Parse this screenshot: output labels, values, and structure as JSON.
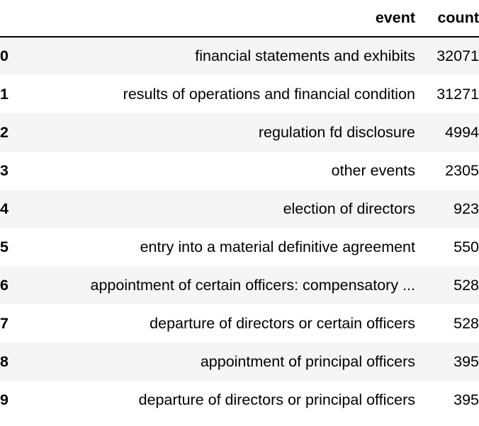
{
  "table": {
    "columns": [
      "event",
      "count"
    ],
    "rows": [
      {
        "index": "0",
        "event": "financial statements and exhibits",
        "count": "32071"
      },
      {
        "index": "1",
        "event": "results of operations and financial condition",
        "count": "31271"
      },
      {
        "index": "2",
        "event": "regulation fd disclosure",
        "count": "4994"
      },
      {
        "index": "3",
        "event": "other events",
        "count": "2305"
      },
      {
        "index": "4",
        "event": "election of directors",
        "count": "923"
      },
      {
        "index": "5",
        "event": "entry into a material definitive agreement",
        "count": "550"
      },
      {
        "index": "6",
        "event": "appointment of certain officers: compensatory ...",
        "count": "528"
      },
      {
        "index": "7",
        "event": "departure of directors or certain officers",
        "count": "528"
      },
      {
        "index": "8",
        "event": "appointment of principal officers",
        "count": "395"
      },
      {
        "index": "9",
        "event": "departure of directors or principal officers",
        "count": "395"
      }
    ]
  }
}
